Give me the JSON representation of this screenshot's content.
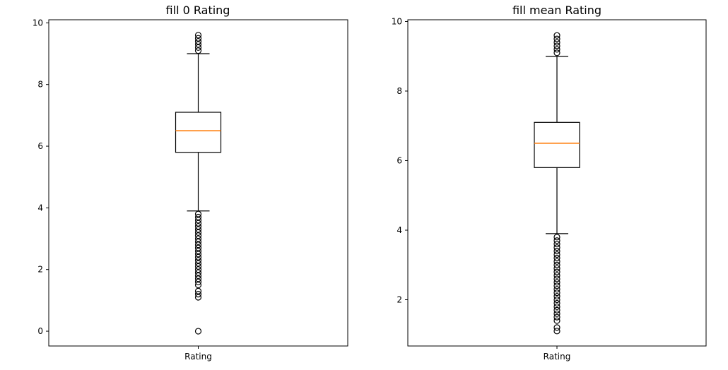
{
  "chart_data": [
    {
      "type": "box",
      "title": "fill 0 Rating",
      "categories": [
        "Rating"
      ],
      "ylim": [
        -0.48,
        10.1
      ],
      "yticks": [
        0,
        2,
        4,
        6,
        8,
        10
      ],
      "grid": false,
      "box": {
        "whisker_low": 3.9,
        "q1": 5.8,
        "median": 6.5,
        "q3": 7.1,
        "whisker_high": 9.0
      },
      "outliers": [
        9.1,
        9.2,
        9.3,
        9.4,
        9.5,
        9.6,
        3.8,
        3.7,
        3.6,
        3.5,
        3.4,
        3.3,
        3.2,
        3.1,
        3.0,
        2.9,
        2.8,
        2.7,
        2.6,
        2.5,
        2.4,
        2.3,
        2.2,
        2.1,
        2.0,
        1.9,
        1.8,
        1.7,
        1.6,
        1.5,
        1.3,
        1.2,
        1.1,
        0.0
      ],
      "colors": {
        "box": "#000000",
        "median": "#ff7f0e"
      }
    },
    {
      "type": "box",
      "title": "fill mean Rating",
      "categories": [
        "Rating"
      ],
      "ylim": [
        0.67,
        10.05
      ],
      "yticks": [
        2,
        4,
        6,
        8,
        10
      ],
      "grid": false,
      "box": {
        "whisker_low": 3.9,
        "q1": 5.8,
        "median": 6.5,
        "q3": 7.1,
        "whisker_high": 9.0
      },
      "outliers": [
        9.1,
        9.2,
        9.3,
        9.4,
        9.5,
        9.6,
        3.8,
        3.7,
        3.6,
        3.5,
        3.4,
        3.3,
        3.2,
        3.1,
        3.0,
        2.9,
        2.8,
        2.7,
        2.6,
        2.5,
        2.4,
        2.3,
        2.2,
        2.1,
        2.0,
        1.9,
        1.8,
        1.7,
        1.6,
        1.5,
        1.4,
        1.2,
        1.1
      ],
      "colors": {
        "box": "#000000",
        "median": "#ff7f0e"
      }
    }
  ]
}
